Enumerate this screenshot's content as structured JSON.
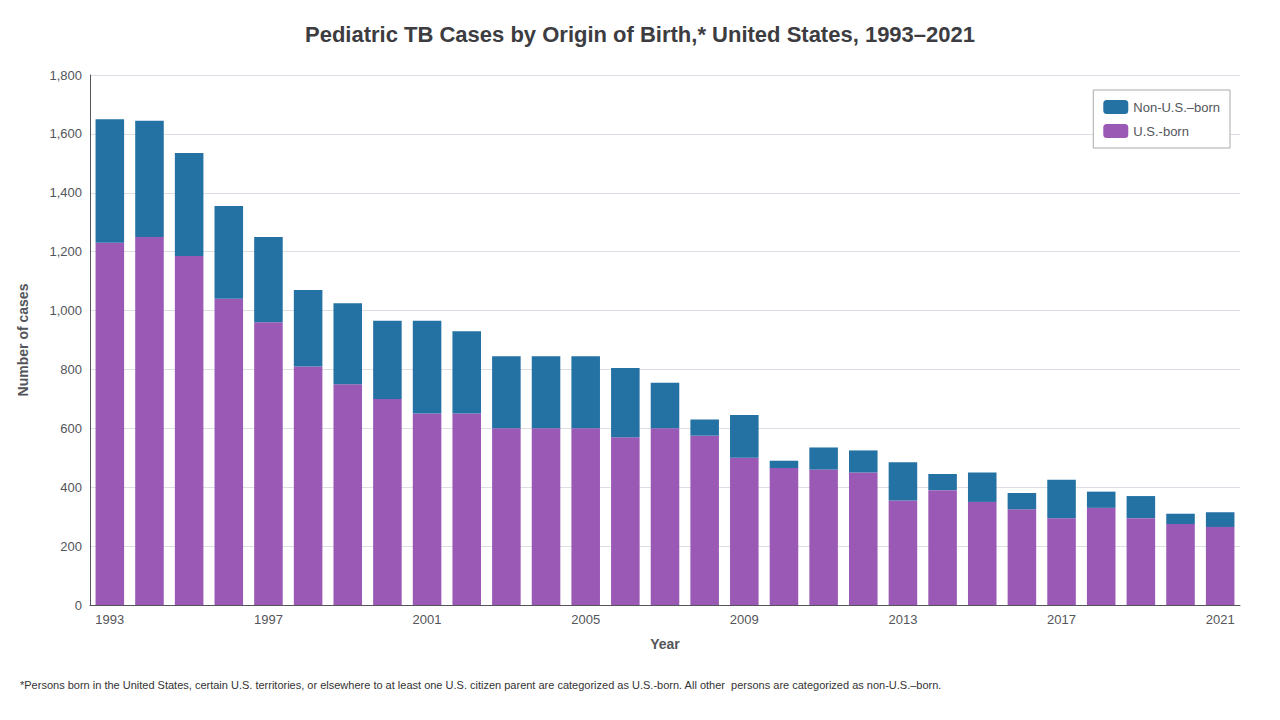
{
  "chart_data": {
    "type": "bar",
    "title": "Pediatric TB Cases by Origin of Birth,* United States, 1993–2021",
    "xlabel": "Year",
    "ylabel": "Number of cases",
    "categories": [
      "1993",
      null,
      null,
      null,
      "1997",
      null,
      null,
      null,
      "2001",
      null,
      null,
      null,
      "2005",
      null,
      null,
      null,
      "2009",
      null,
      null,
      null,
      "2013",
      null,
      null,
      null,
      "2017",
      null,
      null,
      null,
      "2021"
    ],
    "series": [
      {
        "name": "U.S.-born",
        "color": "#9B59B6",
        "values": [
          1230,
          1250,
          1185,
          1040,
          960,
          810,
          750,
          700,
          650,
          650,
          600,
          600,
          600,
          570,
          600,
          575,
          500,
          465,
          460,
          450,
          355,
          390,
          350,
          325,
          295,
          330,
          295,
          275,
          265
        ]
      },
      {
        "name": "Non-U.S.–born",
        "color": "#2471A3",
        "values": [
          420,
          395,
          350,
          315,
          290,
          260,
          275,
          265,
          315,
          280,
          245,
          245,
          245,
          235,
          155,
          55,
          145,
          25,
          75,
          75,
          130,
          55,
          100,
          55,
          130,
          55,
          75,
          35,
          50
        ]
      }
    ],
    "stacked": true,
    "ylim": [
      0,
      1800
    ],
    "yticks": [
      0,
      200,
      400,
      600,
      800,
      {
        "value": 1000,
        "label": "1,000"
      },
      {
        "value": 1200,
        "label": "1,200"
      },
      {
        "value": 1400,
        "label": "1,400"
      },
      {
        "value": 1600,
        "label": "1,600"
      },
      {
        "value": 1800,
        "label": "1,800"
      }
    ],
    "grid": true,
    "legend": "upper right",
    "footnote": "*Persons born in the United States, certain U.S. territories, or elsewhere to at least one U.S. citizen parent are categorized as U.S.-born. All other  persons are categorized as non-U.S.–born."
  }
}
